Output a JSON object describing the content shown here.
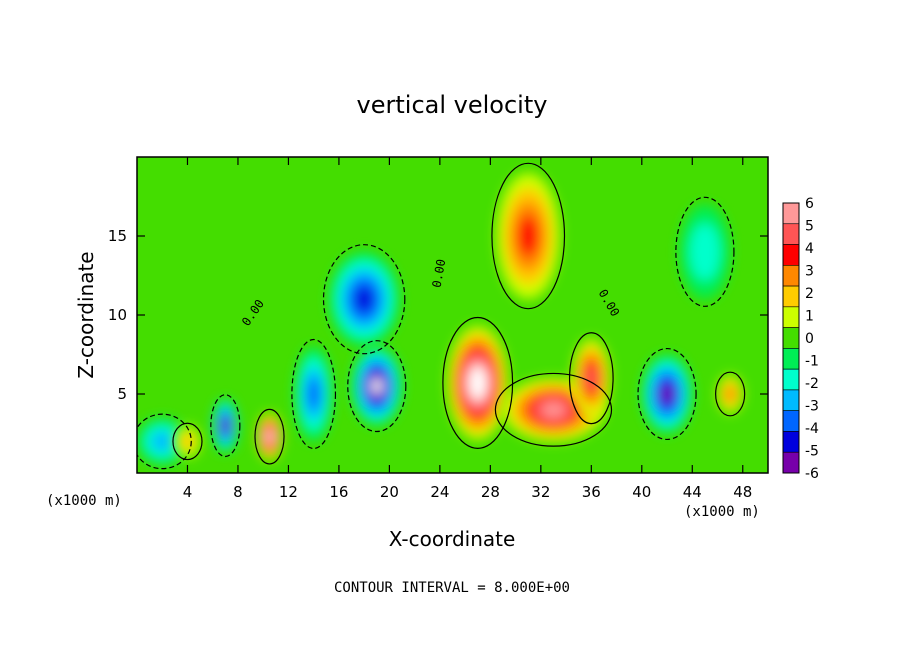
{
  "chart_data": {
    "type": "heatmap",
    "title": "vertical velocity",
    "xlabel": "X-coordinate",
    "ylabel": "Z-coordinate",
    "x_unit": "(x1000 m)",
    "x_unit_right": "(x1000 m)",
    "xlim": [
      0,
      50
    ],
    "ylim": [
      0,
      20
    ],
    "x_ticks": [
      "4",
      "8",
      "12",
      "16",
      "20",
      "24",
      "28",
      "32",
      "36",
      "40",
      "44",
      "48"
    ],
    "x_tick_values": [
      4,
      8,
      12,
      16,
      20,
      24,
      28,
      32,
      36,
      40,
      44,
      48
    ],
    "y_ticks": [
      "5",
      "10",
      "15"
    ],
    "y_tick_values": [
      5,
      10,
      15
    ],
    "colorbar": {
      "labels": [
        "6",
        "5",
        "4",
        "3",
        "2",
        "1",
        "0",
        "-1",
        "-2",
        "-3",
        "-4",
        "-5",
        "-6"
      ],
      "values": [
        6,
        5,
        4,
        3,
        2,
        1,
        0,
        -1,
        -2,
        -3,
        -4,
        -5,
        -6
      ],
      "colors": [
        "#ff9999",
        "#ff5555",
        "#ff0000",
        "#ff8800",
        "#ffcc00",
        "#ccff00",
        "#44dd00",
        "#00ee55",
        "#00ffcc",
        "#00bbff",
        "#0066ff",
        "#0000dd",
        "#7700aa"
      ]
    },
    "contour_labels": [
      "0.00",
      "0.00",
      "0.00"
    ],
    "footer": "CONTOUR INTERVAL = 8.000E+00",
    "features": [
      {
        "x": 27,
        "z": 5.7,
        "value": 8,
        "rx": 2.4,
        "rz": 3.6
      },
      {
        "x": 31,
        "z": 15,
        "value": 4,
        "rx": 2.5,
        "rz": 4
      },
      {
        "x": 33,
        "z": 4,
        "value": 6,
        "rx": 4,
        "rz": 2
      },
      {
        "x": 36,
        "z": 6,
        "value": 5,
        "rx": 1.5,
        "rz": 2.5
      },
      {
        "x": 10.5,
        "z": 2.3,
        "value": 7,
        "rx": 1,
        "rz": 1.5
      },
      {
        "x": 18,
        "z": 11,
        "value": -5,
        "rx": 2.8,
        "rz": 3
      },
      {
        "x": 19,
        "z": 5.5,
        "value": -7,
        "rx": 2,
        "rz": 2.5
      },
      {
        "x": 14,
        "z": 5,
        "value": -4,
        "rx": 1.5,
        "rz": 3
      },
      {
        "x": 7,
        "z": 3,
        "value": -6,
        "rx": 1,
        "rz": 1.7
      },
      {
        "x": 42,
        "z": 5,
        "value": -6,
        "rx": 2,
        "rz": 2.5
      },
      {
        "x": 2,
        "z": 2,
        "value": -3,
        "rx": 2,
        "rz": 1.5
      },
      {
        "x": 47,
        "z": 5,
        "value": 3,
        "rx": 1,
        "rz": 1.2
      },
      {
        "x": 4,
        "z": 2,
        "value": 2,
        "rx": 1,
        "rz": 1
      },
      {
        "x": 45,
        "z": 14,
        "value": -2,
        "rx": 2,
        "rz": 3
      }
    ]
  }
}
